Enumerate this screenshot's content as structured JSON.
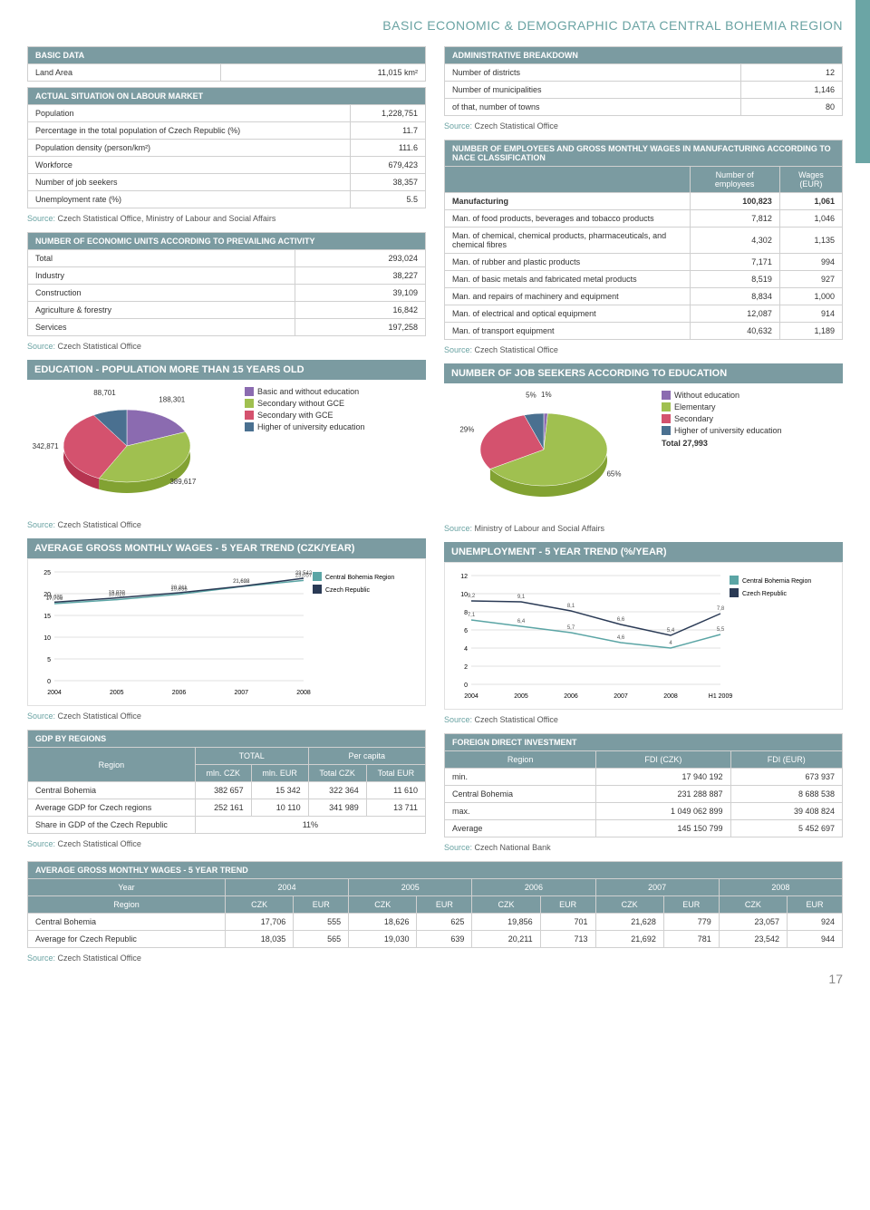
{
  "page_title": "BASIC ECONOMIC & DEMOGRAPHIC DATA CENTRAL BOHEMIA REGION",
  "page_number": "17",
  "source_label": "Source:",
  "source_cso": "Czech Statistical Office",
  "source_cso_ml": "Czech Statistical Office, Ministry of Labour and Social Affairs",
  "source_ml": "Ministry of Labour and Social Affairs",
  "source_cnb": "Czech National Bank",
  "colors": {
    "header": "#7b9ba1",
    "accent": "#6aa3a3",
    "grid": "#e0e0e0"
  },
  "basic_data": {
    "title": "BASIC DATA",
    "rows": [
      {
        "label": "Land Area",
        "value": "11,015 km²"
      }
    ]
  },
  "labour": {
    "title": "ACTUAL SITUATION ON LABOUR MARKET",
    "rows": [
      {
        "label": "Population",
        "value": "1,228,751"
      },
      {
        "label": "Percentage in the total population of Czech Republic (%)",
        "value": "11.7"
      },
      {
        "label": "Population density (person/km²)",
        "value": "111.6"
      },
      {
        "label": "Workforce",
        "value": "679,423"
      },
      {
        "label": "Number of job seekers",
        "value": "38,357"
      },
      {
        "label": "Unemployment rate (%)",
        "value": "5.5"
      }
    ]
  },
  "econ_units": {
    "title": "NUMBER OF ECONOMIC UNITS ACCORDING TO PREVAILING ACTIVITY",
    "rows": [
      {
        "label": "Total",
        "value": "293,024"
      },
      {
        "label": "Industry",
        "value": "38,227"
      },
      {
        "label": "Construction",
        "value": "39,109"
      },
      {
        "label": "Agriculture & forestry",
        "value": "16,842"
      },
      {
        "label": "Services",
        "value": "197,258"
      }
    ]
  },
  "admin": {
    "title": "ADMINISTRATIVE BREAKDOWN",
    "rows": [
      {
        "label": "Number of districts",
        "value": "12"
      },
      {
        "label": "Number of municipalities",
        "value": "1,146"
      },
      {
        "label": "of that, number of towns",
        "value": "80"
      }
    ]
  },
  "nace": {
    "title": "NUMBER OF EMPLOYEES AND GROSS MONTHLY WAGES IN MANUFACTURING ACCORDING TO NACE CLASSIFICATION",
    "h_emp": "Number of employees",
    "h_wages": "Wages (EUR)",
    "rows": [
      {
        "label": "Manufacturing",
        "emp": "100,823",
        "wages": "1,061"
      },
      {
        "label": "Man. of food products, beverages and tobacco products",
        "emp": "7,812",
        "wages": "1,046"
      },
      {
        "label": "Man. of chemical, chemical products, pharmaceuticals, and chemical fibres",
        "emp": "4,302",
        "wages": "1,135"
      },
      {
        "label": "Man. of rubber and plastic products",
        "emp": "7,171",
        "wages": "994"
      },
      {
        "label": "Man. of basic metals and fabricated metal products",
        "emp": "8,519",
        "wages": "927"
      },
      {
        "label": "Man. and repairs of machinery and equipment",
        "emp": "8,834",
        "wages": "1,000"
      },
      {
        "label": "Man. of electrical and optical equipment",
        "emp": "12,087",
        "wages": "914"
      },
      {
        "label": "Man. of transport equipment",
        "emp": "40,632",
        "wages": "1,189"
      }
    ]
  },
  "edu_pie": {
    "title": "EDUCATION - POPULATION MORE THAN 15 YEARS OLD",
    "type": "pie",
    "slices": [
      {
        "label": "Basic and without education",
        "value": 188301,
        "color": "#8b6bb0"
      },
      {
        "label": "Secondary without GCE",
        "value": 389617,
        "color": "#a0c050"
      },
      {
        "label": "Secondary with GCE",
        "value": 342871,
        "color": "#d4526e"
      },
      {
        "label": "Higher of university education",
        "value": 88701,
        "color": "#4a7090"
      }
    ],
    "callouts": [
      "88,701",
      "188,301",
      "342,871",
      "389,617"
    ]
  },
  "job_pie": {
    "title": "NUMBER OF JOB SEEKERS ACCORDING TO EDUCATION",
    "type": "pie",
    "slices": [
      {
        "label": "Without education",
        "value": 1,
        "pct": "1%",
        "color": "#8b6bb0"
      },
      {
        "label": "Elementary",
        "value": 65,
        "pct": "65%",
        "color": "#a0c050"
      },
      {
        "label": "Secondary",
        "value": 29,
        "pct": "29%",
        "color": "#d4526e"
      },
      {
        "label": "Higher of university education",
        "value": 5,
        "pct": "5%",
        "color": "#4a7090"
      }
    ],
    "total": "Total 27,993"
  },
  "wages_chart": {
    "title": "AVERAGE GROSS MONTHLY WAGES - 5 YEAR TREND (CZK/YEAR)",
    "type": "line",
    "years": [
      "2004",
      "2005",
      "2006",
      "2007",
      "2008"
    ],
    "ylim": [
      0,
      25
    ],
    "ytick_step": 5,
    "series": [
      {
        "name": "Central Bohemia Region",
        "color": "#5ba5a5",
        "values": [
          17706,
          18626,
          19856,
          21628,
          23057
        ],
        "labels": [
          "17,706",
          "18,626",
          "19,856",
          "21,628",
          "23,057"
        ]
      },
      {
        "name": "Czech Republic",
        "color": "#2a3a55",
        "values": [
          18035,
          19030,
          20211,
          21692,
          23542
        ],
        "labels": [
          "18,035",
          "19,030",
          "20,211",
          "21,692",
          "23,542"
        ]
      }
    ]
  },
  "unemp_chart": {
    "title": "UNEMPLOYMENT - 5 YEAR TREND (%/YEAR)",
    "type": "line",
    "years": [
      "2004",
      "2005",
      "2006",
      "2007",
      "2008",
      "H1 2009"
    ],
    "ylim": [
      0,
      12
    ],
    "ytick_step": 2,
    "series": [
      {
        "name": "Central Bohemia Region",
        "color": "#5ba5a5",
        "values": [
          7.1,
          6.4,
          5.7,
          4.6,
          4,
          5.5
        ],
        "labels": [
          "7,1",
          "6,4",
          "5,7",
          "4,6",
          "4",
          "5,5"
        ]
      },
      {
        "name": "Czech Republic",
        "color": "#2a3a55",
        "values": [
          9.2,
          9.1,
          8.1,
          6.6,
          5.4,
          7.8
        ],
        "labels": [
          "9,2",
          "9,1",
          "8,1",
          "6,6",
          "5,4",
          "7,8"
        ]
      }
    ]
  },
  "gdp": {
    "title": "GDP BY REGIONS",
    "h_region": "Region",
    "h_total": "TOTAL",
    "h_pc": "Per capita",
    "h_mczk": "mln. CZK",
    "h_meur": "mln. EUR",
    "h_tczk": "Total CZK",
    "h_teur": "Total EUR",
    "rows": [
      {
        "label": "Central Bohemia",
        "v": [
          "382 657",
          "15 342",
          "322 364",
          "11 610"
        ]
      },
      {
        "label": "Average GDP for Czech regions",
        "v": [
          "252 161",
          "10 110",
          "341 989",
          "13 711"
        ]
      }
    ],
    "share_label": "Share in GDP of the Czech Republic",
    "share_value": "11%"
  },
  "fdi": {
    "title": "FOREIGN DIRECT INVESTMENT",
    "h_region": "Region",
    "h_czk": "FDI (CZK)",
    "h_eur": "FDI (EUR)",
    "rows": [
      {
        "label": "min.",
        "czk": "17 940 192",
        "eur": "673 937"
      },
      {
        "label": "Central Bohemia",
        "czk": "231 288 887",
        "eur": "8 688 538"
      },
      {
        "label": "max.",
        "czk": "1 049 062 899",
        "eur": "39 408 824"
      },
      {
        "label": "Average",
        "czk": "145 150 799",
        "eur": "5 452 697"
      }
    ]
  },
  "wage_trend": {
    "title": "AVERAGE GROSS MONTHLY WAGES - 5 YEAR TREND",
    "h_year": "Year",
    "h_region": "Region",
    "years": [
      "2004",
      "2005",
      "2006",
      "2007",
      "2008"
    ],
    "sub": [
      "CZK",
      "EUR"
    ],
    "rows": [
      {
        "label": "Central Bohemia",
        "v": [
          "17,706",
          "555",
          "18,626",
          "625",
          "19,856",
          "701",
          "21,628",
          "779",
          "23,057",
          "924"
        ]
      },
      {
        "label": "Average for Czech Republic",
        "v": [
          "18,035",
          "565",
          "19,030",
          "639",
          "20,211",
          "713",
          "21,692",
          "781",
          "23,542",
          "944"
        ]
      }
    ]
  }
}
